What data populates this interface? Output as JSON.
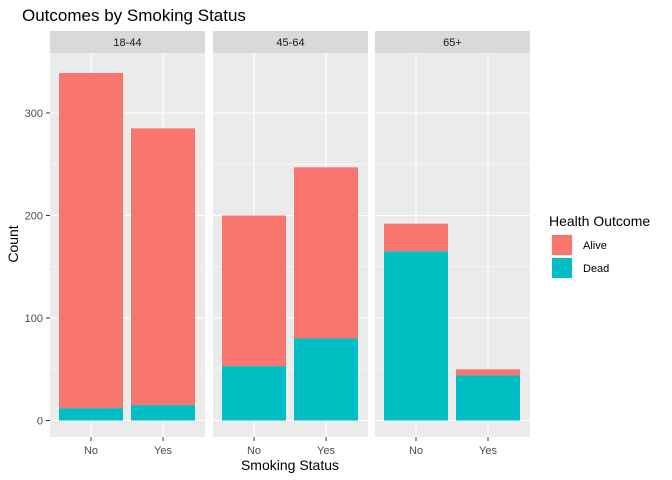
{
  "chart_data": {
    "type": "bar",
    "stacked": true,
    "faceted": true,
    "title": "Outcomes by Smoking Status",
    "xlabel": "Smoking Status",
    "ylabel": "Count",
    "ylim": [
      0,
      355
    ],
    "yticks": [
      0,
      100,
      200,
      300
    ],
    "categories": [
      "No",
      "Yes"
    ],
    "facets": [
      {
        "label": "18-44",
        "values": {
          "Alive": [
            327,
            270
          ],
          "Dead": [
            12,
            15
          ]
        }
      },
      {
        "label": "45-64",
        "values": {
          "Alive": [
            147,
            167
          ],
          "Dead": [
            53,
            80
          ]
        }
      },
      {
        "label": "65+",
        "values": {
          "Alive": [
            27,
            6
          ],
          "Dead": [
            165,
            44
          ]
        }
      }
    ],
    "series": [
      {
        "name": "Alive",
        "color": "#F8766D"
      },
      {
        "name": "Dead",
        "color": "#00BFC4"
      }
    ],
    "legend": {
      "title": "Health Outcome",
      "position": "right"
    },
    "grid": true
  }
}
